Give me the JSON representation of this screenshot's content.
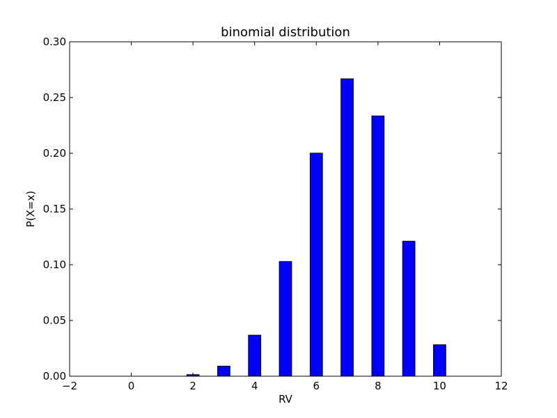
{
  "chart_data": {
    "type": "bar",
    "title": "binomial distribution",
    "xlabel": "RV",
    "ylabel": "P(X=x)",
    "xlim": [
      -2,
      12
    ],
    "ylim": [
      0,
      0.3
    ],
    "bar_width": 0.4,
    "bar_color": "#0000ff",
    "grid": false,
    "x": [
      -1,
      0,
      1,
      2,
      3,
      4,
      5,
      6,
      7,
      8,
      9,
      10,
      11
    ],
    "values": [
      0.0,
      0.0,
      0.0,
      0.0014,
      0.009,
      0.0368,
      0.1029,
      0.2001,
      0.2668,
      0.2335,
      0.1211,
      0.0282,
      0.0
    ],
    "xticks": [
      "−2",
      "0",
      "2",
      "4",
      "6",
      "8",
      "10",
      "12"
    ],
    "xtick_values": [
      -2,
      0,
      2,
      4,
      6,
      8,
      10,
      12
    ],
    "yticks": [
      "0.00",
      "0.05",
      "0.10",
      "0.15",
      "0.20",
      "0.25",
      "0.30"
    ],
    "ytick_values": [
      0,
      0.05,
      0.1,
      0.15,
      0.2,
      0.25,
      0.3
    ]
  }
}
